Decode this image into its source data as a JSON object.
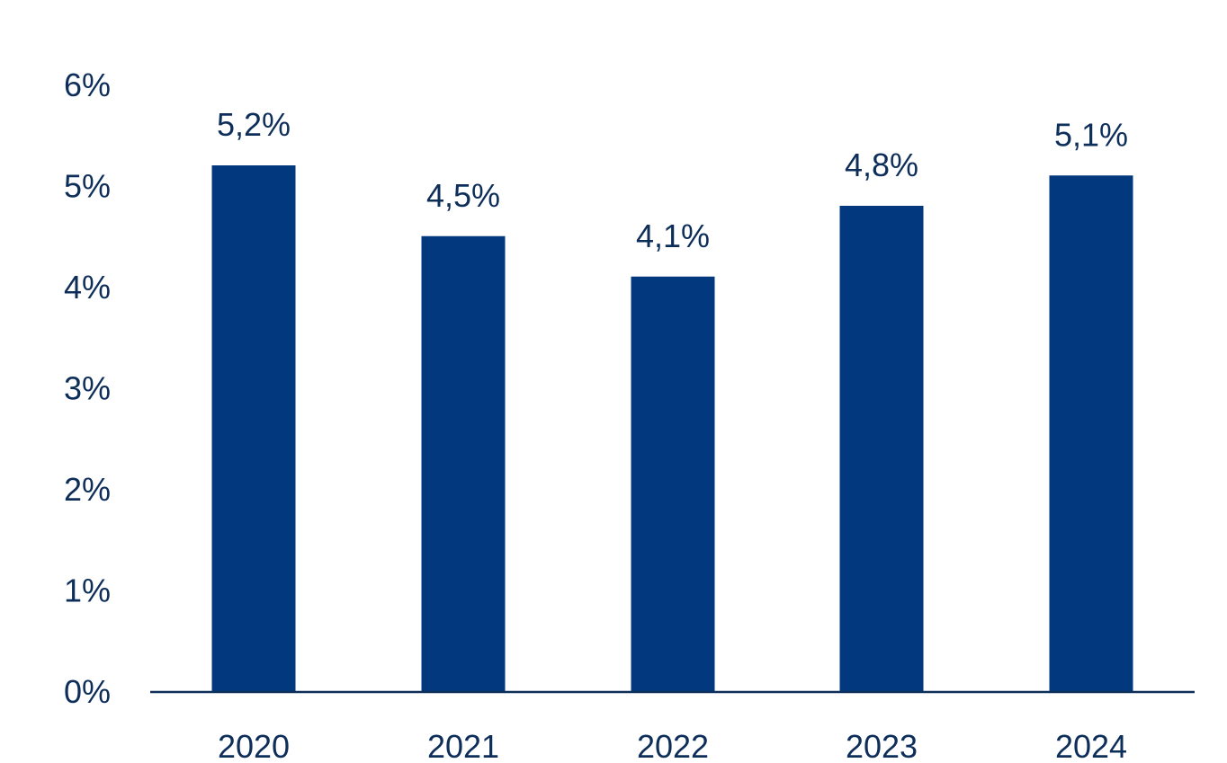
{
  "chart_data": {
    "type": "bar",
    "title": "",
    "xlabel": "",
    "ylabel": "",
    "categories": [
      "2020",
      "2021",
      "2022",
      "2023",
      "2024"
    ],
    "values": [
      5.2,
      4.5,
      4.1,
      4.8,
      5.1
    ],
    "data_labels": [
      "5,2%",
      "4,5%",
      "4,1%",
      "4,8%",
      "5,1%"
    ],
    "ylim": [
      0,
      6
    ],
    "y_ticks": [
      0,
      1,
      2,
      3,
      4,
      5,
      6
    ],
    "y_tick_labels": [
      "0%",
      "1%",
      "2%",
      "3%",
      "4%",
      "5%",
      "6%"
    ],
    "grid": false,
    "legend": "none",
    "colors": {
      "bar": "#02387D",
      "text": "#0E2E5A",
      "axis": "#0E2E5A"
    }
  }
}
